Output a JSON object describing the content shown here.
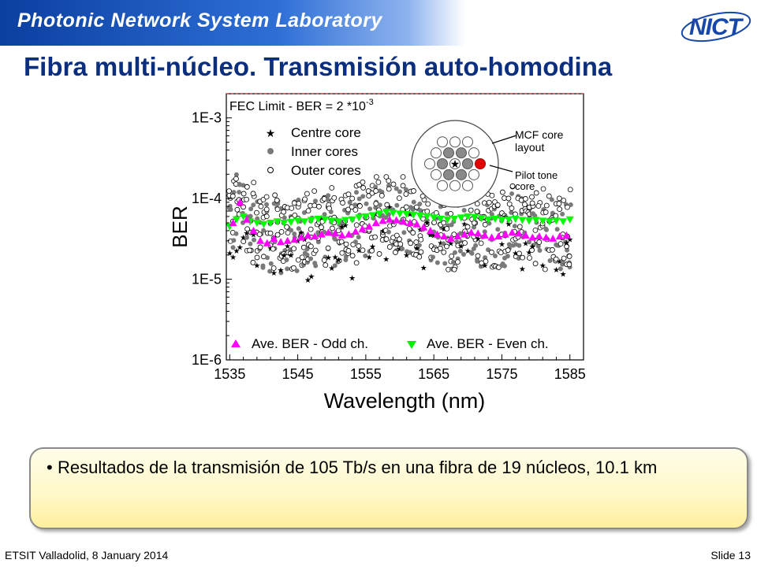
{
  "header": {
    "lab_name": "Photonic Network System Laboratory",
    "logo_text": "NICT"
  },
  "title": "Fibra multi-núcleo. Transmisión auto-homodina",
  "chart_data": {
    "type": "scatter",
    "xlabel": "Wavelength (nm)",
    "ylabel": "BER",
    "xlim": [
      1535,
      1585
    ],
    "ylim_log10": [
      -6,
      -2.7
    ],
    "log_scale_y": true,
    "grid": false,
    "x_ticks": [
      1535,
      1545,
      1555,
      1565,
      1575,
      1585
    ],
    "y_ticks": [
      {
        "value": 1e-06,
        "label": "1E-6"
      },
      {
        "value": 1e-05,
        "label": "1E-5"
      },
      {
        "value": 0.0001,
        "label": "1E-4"
      },
      {
        "value": 0.001,
        "label": "1E-3"
      }
    ],
    "fec_limit": {
      "label": "FEC Limit - BER = 2 *10",
      "exponent": "-3",
      "value": 0.002
    },
    "legend_top": [
      "Centre core",
      "Inner cores",
      "Outer cores"
    ],
    "legend_bottom": [
      "Ave. BER - Odd ch.",
      "Ave. BER - Even ch."
    ],
    "inset": {
      "label_layout": [
        "MCF core",
        "layout"
      ],
      "label_pilot": [
        "Pilot tone",
        "core"
      ]
    },
    "series": [
      {
        "name": "Ave. BER - Odd ch.",
        "color": "#ff00ff",
        "x": [
          1535.5,
          1536.5,
          1537.5,
          1538.5,
          1539.5,
          1540.5,
          1541.5,
          1542.5,
          1543.5,
          1544.5,
          1545.5,
          1546.5,
          1547.5,
          1548.5,
          1549.5,
          1550.5,
          1551.5,
          1552.5,
          1553.5,
          1554.5,
          1555.5,
          1556.5,
          1557.5,
          1558.5,
          1559.5,
          1560.5,
          1561.5,
          1562.5,
          1563.5,
          1564.5,
          1565.5,
          1566.5,
          1567.5,
          1568.5,
          1569.5,
          1570.5,
          1571.5,
          1572.5,
          1573.5,
          1574.5,
          1575.5,
          1576.5,
          1577.5,
          1578.5,
          1579.5,
          1580.5,
          1581.5,
          1582.5,
          1583.5,
          1584.5
        ],
        "y": [
          5e-05,
          9e-05,
          5.5e-05,
          4e-05,
          3e-05,
          2.8e-05,
          3.2e-05,
          2.9e-05,
          3e-05,
          3.1e-05,
          3.3e-05,
          3.5e-05,
          3.4e-05,
          3.6e-05,
          3.8e-05,
          3.7e-05,
          3.5e-05,
          3.6e-05,
          3.9e-05,
          4.2e-05,
          4.5e-05,
          5e-05,
          5.3e-05,
          5.5e-05,
          5.4e-05,
          5.2e-05,
          5e-05,
          4.8e-05,
          4.4e-05,
          4e-05,
          3.6e-05,
          3.4e-05,
          3.2e-05,
          3.4e-05,
          3.6e-05,
          3.8e-05,
          3.7e-05,
          3.5e-05,
          3.3e-05,
          3.4e-05,
          3.6e-05,
          3.8e-05,
          3.7e-05,
          3.5e-05,
          3.3e-05,
          3.4e-05,
          3.3e-05,
          3.2e-05,
          3.4e-05,
          3.5e-05
        ]
      },
      {
        "name": "Ave. BER - Even ch.",
        "color": "#00ff00",
        "x": [
          1535,
          1536,
          1537,
          1538,
          1539,
          1540,
          1541,
          1542,
          1543,
          1544,
          1545,
          1546,
          1547,
          1548,
          1549,
          1550,
          1551,
          1552,
          1553,
          1554,
          1555,
          1556,
          1557,
          1558,
          1559,
          1560,
          1561,
          1562,
          1563,
          1564,
          1565,
          1566,
          1567,
          1568,
          1569,
          1570,
          1571,
          1572,
          1573,
          1574,
          1575,
          1576,
          1577,
          1578,
          1579,
          1580,
          1581,
          1582,
          1583,
          1584,
          1585
        ],
        "y": [
          4.5e-05,
          5.5e-05,
          6e-05,
          5.2e-05,
          5e-05,
          4.8e-05,
          5e-05,
          5.2e-05,
          5e-05,
          5.1e-05,
          5.3e-05,
          5.2e-05,
          5.4e-05,
          5.6e-05,
          5.5e-05,
          5.3e-05,
          5.2e-05,
          5.4e-05,
          5.5e-05,
          5.8e-05,
          6e-05,
          6.2e-05,
          6.5e-05,
          6.8e-05,
          6.6e-05,
          6.5e-05,
          6.4e-05,
          6.3e-05,
          6.1e-05,
          6e-05,
          5.8e-05,
          5.6e-05,
          5.5e-05,
          5.6e-05,
          5.8e-05,
          6e-05,
          5.9e-05,
          5.7e-05,
          5.5e-05,
          5.6e-05,
          5.4e-05,
          5.5e-05,
          5.6e-05,
          5.4e-05,
          5.3e-05,
          5.4e-05,
          5.3e-05,
          5.2e-05,
          5.3e-05,
          5.2e-05,
          5.5e-05
        ]
      }
    ]
  },
  "callout": {
    "text": "Resultados de la transmisión de 105 Tb/s en una fibra de 19 núcleos, 10.1 km"
  },
  "footer": {
    "left": "ETSIT Valladolid, 8 January 2014",
    "right": "Slide 13"
  }
}
